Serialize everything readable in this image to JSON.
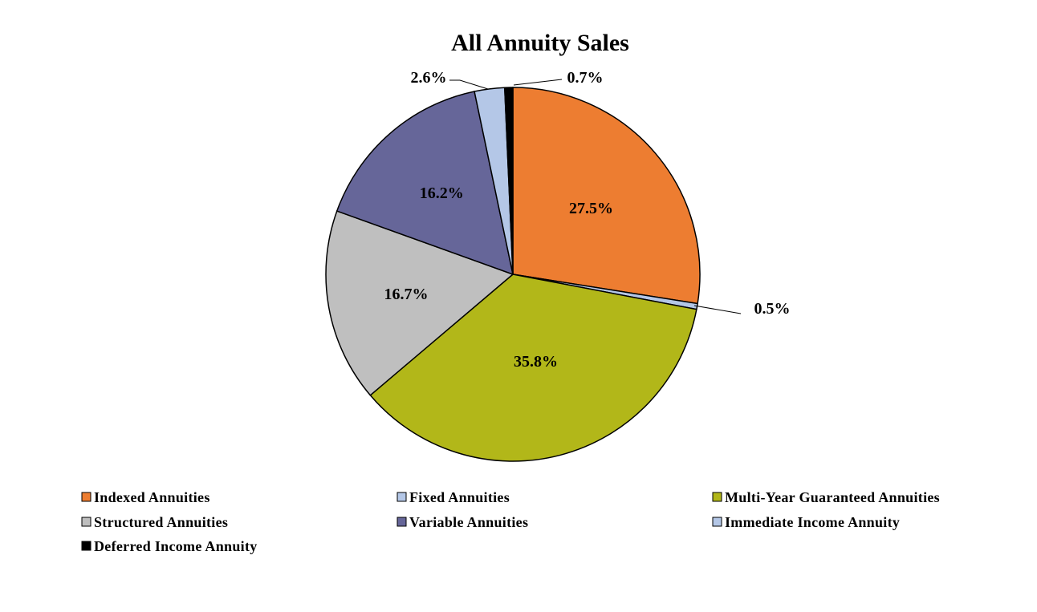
{
  "chart_data": {
    "type": "pie",
    "title": "All Annuity Sales",
    "start_angle_deg": 0,
    "direction": "clockwise",
    "slices": [
      {
        "name": "Indexed Annuities",
        "value": 27.5,
        "label": "27.5%",
        "color": "#ED7D31",
        "label_placement": "inside"
      },
      {
        "name": "Fixed Annuities",
        "value": 0.5,
        "label": "0.5%",
        "color": "#B4C7E7",
        "label_placement": "outside"
      },
      {
        "name": "Multi-Year Guaranteed Annuities",
        "value": 35.8,
        "label": "35.8%",
        "color": "#B2B719",
        "label_placement": "inside"
      },
      {
        "name": "Structured Annuities",
        "value": 16.7,
        "label": "16.7%",
        "color": "#BFBFBF",
        "label_placement": "inside"
      },
      {
        "name": "Variable Annuities",
        "value": 16.2,
        "label": "16.2%",
        "color": "#666699",
        "label_placement": "inside"
      },
      {
        "name": "Immediate Income Annuity",
        "value": 2.6,
        "label": "2.6%",
        "color": "#B4C7E7",
        "label_placement": "outside"
      },
      {
        "name": "Deferred Income Annuity",
        "value": 0.7,
        "label": "0.7%",
        "color": "#000000",
        "label_placement": "outside"
      }
    ],
    "legend": {
      "placement": "bottom",
      "columns": 3,
      "items": [
        "Indexed Annuities",
        "Fixed Annuities",
        "Multi-Year Guaranteed Annuities",
        "Structured Annuities",
        "Variable Annuities",
        "Immediate Income Annuity",
        "Deferred Income Annuity"
      ]
    }
  }
}
